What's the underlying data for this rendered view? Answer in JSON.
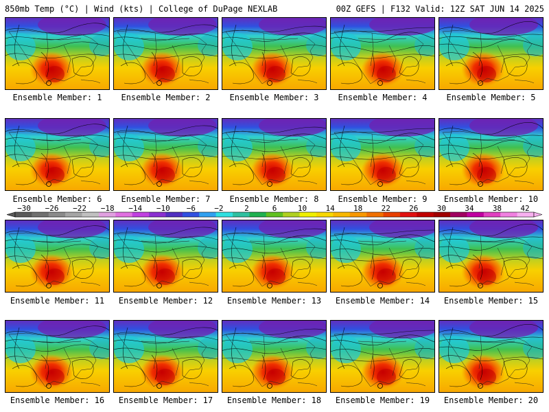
{
  "header": {
    "left": "850mb Temp (°C) | Wind (kts) | College of DuPage NEXLAB",
    "right": "00Z GEFS | F132 Valid: 12Z SAT JUN 14 2025"
  },
  "members": [
    "Ensemble Member: 1",
    "Ensemble Member: 2",
    "Ensemble Member: 3",
    "Ensemble Member: 4",
    "Ensemble Member: 5",
    "Ensemble Member: 6",
    "Ensemble Member: 7",
    "Ensemble Member: 8",
    "Ensemble Member: 9",
    "Ensemble Member: 10",
    "Ensemble Member: 11",
    "Ensemble Member: 12",
    "Ensemble Member: 13",
    "Ensemble Member: 14",
    "Ensemble Member: 15",
    "Ensemble Member: 16",
    "Ensemble Member: 17",
    "Ensemble Member: 18",
    "Ensemble Member: 19",
    "Ensemble Member: 20"
  ],
  "colorbar": {
    "labels": [
      "−30",
      "−26",
      "−22",
      "−18",
      "−14",
      "−10",
      "−6",
      "−2",
      "2",
      "6",
      "10",
      "14",
      "18",
      "22",
      "26",
      "30",
      "34",
      "38",
      "42"
    ],
    "colors": [
      "#5a5a5a",
      "#707070",
      "#8a8a8a",
      "#a5a5a5",
      "#c0c0c0",
      "#e0a0e0",
      "#e070e0",
      "#c040e0",
      "#8a30d0",
      "#5030c0",
      "#3050e0",
      "#30a0f0",
      "#30e0e0",
      "#30c0a0",
      "#20b050",
      "#60c020",
      "#b0d020",
      "#f0f000",
      "#f8d800",
      "#f8b800",
      "#f89800",
      "#f07000",
      "#e84000",
      "#e01010",
      "#c00000",
      "#a00000",
      "#a00060",
      "#c000a0",
      "#e040c0",
      "#f080e0",
      "#f8b0f0"
    ]
  }
}
